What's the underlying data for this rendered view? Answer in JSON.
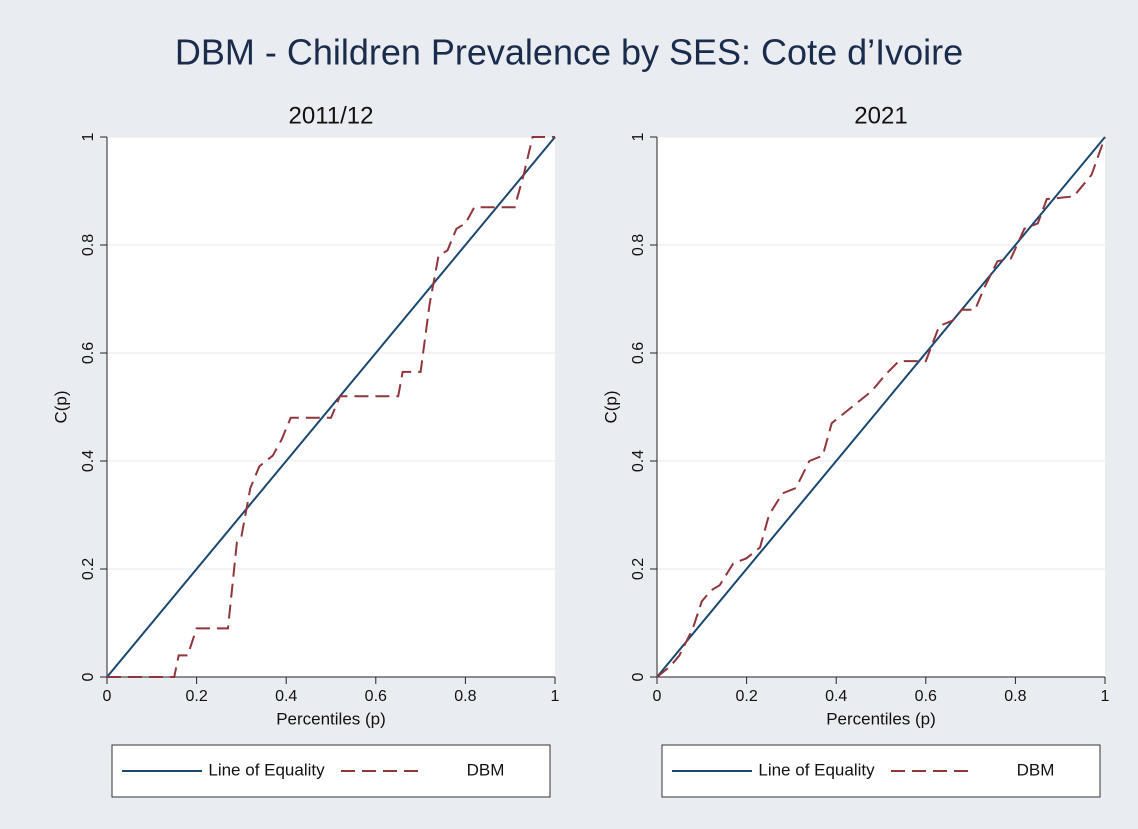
{
  "title": "DBM - Children Prevalence by SES: Cote d’Ivoire",
  "chart_data": [
    {
      "type": "line",
      "title": "2011/12",
      "xlabel": "Percentiles (p)",
      "ylabel": "C(p)",
      "xlim": [
        0,
        1
      ],
      "ylim": [
        0,
        1
      ],
      "xticks": [
        0,
        0.2,
        0.4,
        0.6,
        0.8,
        1
      ],
      "yticks": [
        0,
        0.2,
        0.4,
        0.6,
        0.8,
        1
      ],
      "grid": true,
      "legend": "bottom",
      "series": [
        {
          "name": "Line of Equality",
          "color": "#1a476f",
          "linestyle": "solid",
          "x": [
            0,
            1
          ],
          "values": [
            0,
            1
          ]
        },
        {
          "name": "DBM",
          "color": "#90353b",
          "linestyle": "dashed",
          "x": [
            0,
            0.15,
            0.16,
            0.18,
            0.2,
            0.27,
            0.29,
            0.3,
            0.32,
            0.34,
            0.37,
            0.39,
            0.41,
            0.5,
            0.52,
            0.65,
            0.66,
            0.7,
            0.72,
            0.74,
            0.76,
            0.78,
            0.8,
            0.82,
            0.91,
            0.93,
            0.95,
            1
          ],
          "values": [
            0,
            0,
            0.04,
            0.04,
            0.09,
            0.09,
            0.25,
            0.26,
            0.35,
            0.39,
            0.41,
            0.44,
            0.48,
            0.48,
            0.52,
            0.52,
            0.565,
            0.565,
            0.69,
            0.78,
            0.79,
            0.83,
            0.84,
            0.87,
            0.87,
            0.93,
            1,
            1
          ]
        }
      ]
    },
    {
      "type": "line",
      "title": "2021",
      "xlabel": "Percentiles (p)",
      "ylabel": "C(p)",
      "xlim": [
        0,
        1
      ],
      "ylim": [
        0,
        1
      ],
      "xticks": [
        0,
        0.2,
        0.4,
        0.6,
        0.8,
        1
      ],
      "yticks": [
        0,
        0.2,
        0.4,
        0.6,
        0.8,
        1
      ],
      "grid": true,
      "legend": "bottom",
      "series": [
        {
          "name": "Line of Equality",
          "color": "#1a476f",
          "linestyle": "solid",
          "x": [
            0,
            1
          ],
          "values": [
            0,
            1
          ]
        },
        {
          "name": "DBM",
          "color": "#90353b",
          "linestyle": "dashed",
          "x": [
            0,
            0.03,
            0.05,
            0.08,
            0.1,
            0.12,
            0.14,
            0.17,
            0.2,
            0.23,
            0.25,
            0.28,
            0.31,
            0.34,
            0.37,
            0.39,
            0.42,
            0.45,
            0.48,
            0.51,
            0.54,
            0.6,
            0.63,
            0.66,
            0.68,
            0.71,
            0.73,
            0.76,
            0.79,
            0.82,
            0.85,
            0.87,
            0.93,
            0.97,
            1
          ],
          "values": [
            0,
            0.02,
            0.04,
            0.09,
            0.14,
            0.16,
            0.17,
            0.21,
            0.22,
            0.24,
            0.3,
            0.34,
            0.35,
            0.4,
            0.41,
            0.47,
            0.49,
            0.51,
            0.53,
            0.56,
            0.585,
            0.585,
            0.65,
            0.66,
            0.68,
            0.68,
            0.72,
            0.77,
            0.775,
            0.83,
            0.84,
            0.885,
            0.89,
            0.93,
            1
          ]
        }
      ]
    }
  ]
}
